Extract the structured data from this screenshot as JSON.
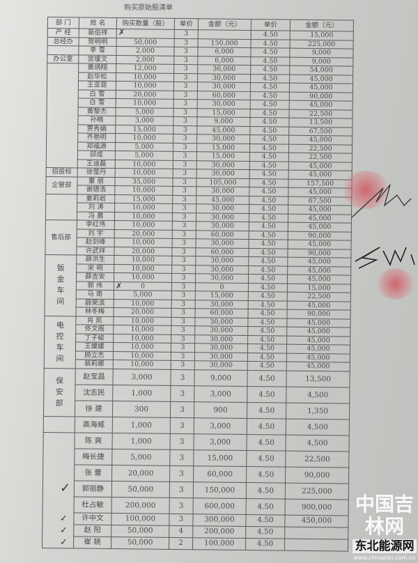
{
  "title": "购买原始股清单",
  "headers": [
    "部 门",
    "姓 名",
    "购买数量（股）",
    "单价",
    "金额（元）",
    "单价",
    "金额（元）"
  ],
  "rows": [
    [
      "裴伯祥",
      "",
      "3",
      "",
      "4.50",
      "15,000"
    ],
    [
      "贺明明",
      "50,000",
      "3",
      "150,000",
      "4.50",
      "225,000"
    ],
    [
      "李 雪",
      "2,000",
      "3",
      "6,000",
      "4.50",
      "9,000"
    ],
    [
      "宫瑷文",
      "2,000",
      "3",
      "6,000",
      "4.50",
      "9,000"
    ],
    [
      "黄炳翔",
      "12,000",
      "3",
      "36,000",
      "4.50",
      "54,000"
    ],
    [
      "赵华松",
      "10,000",
      "3",
      "30,000",
      "4.50",
      "45,000"
    ],
    [
      "王亚昆",
      "10,000",
      "3",
      "30,000",
      "4.50",
      "45,000"
    ],
    [
      "白 雪",
      "20,000",
      "3",
      "60,000",
      "4.50",
      "90,000"
    ],
    [
      "白 雪",
      "10,000",
      "3",
      "30,000",
      "4.50",
      "45,000"
    ],
    [
      "黄黎杰",
      "5,000",
      "3",
      "15,000",
      "4.50",
      "22,500"
    ],
    [
      "孙楠",
      "3,000",
      "3",
      "9,000",
      "4.50",
      "13,500"
    ],
    [
      "贾秀娟",
      "15,000",
      "3",
      "45,000",
      "4.50",
      "67,500"
    ],
    [
      "齐艳明",
      "10,000",
      "3",
      "30,000",
      "4.50",
      "45,000"
    ],
    [
      "郑福源",
      "5,000",
      "3",
      "15,000",
      "4.50",
      "22,500"
    ],
    [
      "邱成",
      "5,000",
      "3",
      "15,000",
      "4.50",
      "22,500"
    ],
    [
      "王迪磊",
      "10,000",
      "3",
      "30,000",
      "4.50",
      "45,000"
    ],
    [
      "徐莹丹",
      "10,000",
      "3",
      "30,000",
      "4.50",
      "45,000"
    ],
    [
      "董 丽",
      "35,000",
      "3",
      "105,000",
      "4.50",
      "157,500"
    ],
    [
      "谢德浩",
      "10,000",
      "3",
      "30,000",
      "4.50",
      "45,000"
    ],
    [
      "姜莉岩",
      "15,000",
      "3",
      "45,000",
      "4.50",
      "67,500"
    ],
    [
      "刘 涛",
      "10,000",
      "3",
      "30,000",
      "4.50",
      "45,000"
    ],
    [
      "冯 晨",
      "10,000",
      "3",
      "30,000",
      "4.50",
      "45,000"
    ],
    [
      "李红伟",
      "10,000",
      "3",
      "30,000",
      "4.50",
      "45,000"
    ],
    [
      "刘 宇",
      "20,000",
      "3",
      "60,000",
      "4.50",
      "90,000"
    ],
    [
      "赵剑峰",
      "10,000",
      "3",
      "30,000",
      "4.50",
      "45,000"
    ],
    [
      "许武祥",
      "20,000",
      "3",
      "60,000",
      "4.50",
      "90,000"
    ],
    [
      "薛洪生",
      "10,000",
      "3",
      "30,000",
      "4.50",
      "45,000"
    ],
    [
      "宋 明",
      "10,000",
      "3",
      "30,000",
      "4.50",
      "45,000"
    ],
    [
      "薛吉安",
      "10,000",
      "3",
      "30,000",
      "4.50",
      "45,000"
    ],
    [
      "郭 伟",
      "0",
      "3",
      "0",
      "4.50",
      "15,000"
    ],
    [
      "马 南",
      "5,000",
      "3",
      "15,000",
      "4.50",
      "22,500"
    ],
    [
      "薛荣滨",
      "10,000",
      "3",
      "30,000",
      "4.50",
      "45,000"
    ],
    [
      "林冬梅",
      "20,000",
      "3",
      "60,000",
      "4.50",
      "90,000"
    ],
    [
      "肖 凯",
      "10,000",
      "3",
      "30,000",
      "4.50",
      "45,000"
    ],
    [
      "佟文阁",
      "10,000",
      "3",
      "30,000",
      "4.50",
      "45,000"
    ],
    [
      "丁子峻",
      "10,000",
      "3",
      "30,000",
      "4.50",
      "45,000"
    ],
    [
      "王媛媛",
      "10,000",
      "3",
      "30,000",
      "4.50",
      "45,000"
    ],
    [
      "顾立杰",
      "10,000",
      "3",
      "30,000",
      "4.50",
      "45,000"
    ],
    [
      "裴莉娜",
      "10,000",
      "3",
      "30,000",
      "4.50",
      "45,000"
    ],
    [
      "赵宝昌",
      "3,000",
      "3",
      "9,000",
      "4.50",
      "13,500"
    ],
    [
      "沈志民",
      "1,000",
      "3",
      "3,000",
      "4.50",
      "4,500"
    ],
    [
      "徐 建",
      "300",
      "3",
      "900",
      "4.50",
      "1,350"
    ],
    [
      "高海威",
      "1,000",
      "3",
      "3,000",
      "4.50",
      "4,500"
    ],
    [
      "陈 爽",
      "1,000",
      "3",
      "3,000",
      "4.50",
      "4,500"
    ],
    [
      "梅长捷",
      "5,000",
      "3",
      "15,000",
      "4.50",
      "22,500"
    ],
    [
      "张 蕾",
      "20,000",
      "3",
      "60,000",
      "4.50",
      "90,000"
    ],
    [
      "郭丽静",
      "50,000",
      "3",
      "150,000",
      "4.50",
      "225,000"
    ],
    [
      "杜占敏",
      "200,000",
      "3",
      "600,000",
      "4.50",
      "900,000"
    ],
    [
      "许中文",
      "100,000",
      "3",
      "300,000",
      "4.50",
      "450,000"
    ],
    [
      "赵 阳",
      "50,000",
      "4",
      "200,000",
      "4.50",
      ""
    ],
    [
      "崔 娆",
      "50,000",
      "2",
      "100,000",
      "4.50",
      ""
    ]
  ],
  "departments": [
    {
      "label": "产 经",
      "start": 0,
      "span": 1
    },
    {
      "label": "总经办",
      "start": 1,
      "span": 1
    },
    {
      "label": "",
      "start": 2,
      "span": 1
    },
    {
      "label": "办公室",
      "start": 3,
      "span": 1
    },
    {
      "label": "",
      "start": 4,
      "span": 12
    },
    {
      "label": "招投标",
      "start": 16,
      "span": 1
    },
    {
      "label": "企管部",
      "start": 17,
      "span": 2
    },
    {
      "label": "",
      "start": 19,
      "span": 3
    },
    {
      "label": "售后部",
      "start": 22,
      "span": 4
    },
    {
      "label": "钣金车间",
      "start": 26,
      "span": 7,
      "vertical": true
    },
    {
      "label": "电控车间",
      "start": 33,
      "span": 6,
      "vertical": true
    },
    {
      "label": "保安部",
      "start": 39,
      "span": 3,
      "vertical": true
    },
    {
      "label": "",
      "start": 42,
      "span": 1
    },
    {
      "label": "",
      "start": 43,
      "span": 8
    }
  ],
  "marks": {
    "cross": "✗",
    "check": "✓"
  },
  "watermark": {
    "logo": "中国吉林网",
    "site": "东北能源网",
    "url": "www.chinajilin.com.cn"
  },
  "colors": {
    "paper": "#c9cbc8",
    "ink": "#4a4a4a",
    "stamp": "#d24650"
  }
}
